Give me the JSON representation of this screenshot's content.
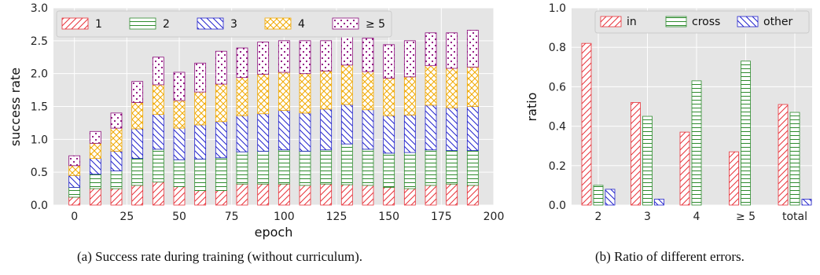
{
  "colors": {
    "bg": "#e5e5e5",
    "grid": "#ffffff",
    "series1": "#e8323a",
    "series2": "#2e8b2e",
    "series3": "#2222cc",
    "series4": "#f0a800",
    "series5": "#8b0b7a"
  },
  "captions": {
    "a": "(a) Success rate during training (without curriculum).",
    "b": "(b) Ratio of different errors."
  },
  "chart_data": [
    {
      "type": "bar",
      "stacked": true,
      "xlabel": "epoch",
      "ylabel": "success rate",
      "xlim": [
        -10,
        200
      ],
      "ylim": [
        0,
        3.0
      ],
      "xticks": [
        "0",
        "25",
        "50",
        "75",
        "100",
        "125",
        "150",
        "175",
        "200"
      ],
      "yticks": [
        "0.0",
        "0.5",
        "1.0",
        "1.5",
        "2.0",
        "2.5",
        "3.0"
      ],
      "grid": true,
      "legend_position": "top",
      "x": [
        0,
        10,
        20,
        30,
        40,
        50,
        60,
        70,
        80,
        90,
        100,
        110,
        120,
        130,
        140,
        150,
        160,
        170,
        180,
        190
      ],
      "series": [
        {
          "name": "1",
          "color": "series1",
          "hatch": "diag-fwd",
          "values": [
            0.12,
            0.25,
            0.25,
            0.3,
            0.35,
            0.28,
            0.22,
            0.22,
            0.32,
            0.32,
            0.32,
            0.3,
            0.32,
            0.31,
            0.3,
            0.27,
            0.25,
            0.3,
            0.32,
            0.3
          ]
        },
        {
          "name": "2",
          "color": "series2",
          "hatch": "horizontal",
          "values": [
            0.15,
            0.22,
            0.27,
            0.41,
            0.5,
            0.41,
            0.48,
            0.5,
            0.49,
            0.5,
            0.52,
            0.52,
            0.52,
            0.62,
            0.55,
            0.52,
            0.55,
            0.54,
            0.51,
            0.53
          ]
        },
        {
          "name": "3",
          "color": "series3",
          "hatch": "diag-back",
          "values": [
            0.18,
            0.24,
            0.3,
            0.45,
            0.53,
            0.48,
            0.52,
            0.55,
            0.55,
            0.57,
            0.6,
            0.58,
            0.62,
            0.6,
            0.6,
            0.57,
            0.57,
            0.68,
            0.65,
            0.67
          ]
        },
        {
          "name": "4",
          "color": "series4",
          "hatch": "cross",
          "values": [
            0.15,
            0.23,
            0.35,
            0.4,
            0.45,
            0.42,
            0.5,
            0.57,
            0.58,
            0.6,
            0.58,
            0.6,
            0.58,
            0.6,
            0.58,
            0.57,
            0.58,
            0.6,
            0.6,
            0.6
          ]
        },
        {
          "name": "≥ 5",
          "color": "series5",
          "hatch": "dots",
          "values": [
            0.15,
            0.18,
            0.23,
            0.32,
            0.42,
            0.43,
            0.44,
            0.5,
            0.45,
            0.49,
            0.48,
            0.5,
            0.46,
            0.45,
            0.51,
            0.51,
            0.55,
            0.5,
            0.54,
            0.56
          ]
        }
      ]
    },
    {
      "type": "bar",
      "stacked": false,
      "xlabel": "",
      "ylabel": "ratio",
      "ylim": [
        0,
        1.0
      ],
      "yticks": [
        "0.0",
        "0.2",
        "0.4",
        "0.6",
        "0.8",
        "1.0"
      ],
      "grid": true,
      "legend_position": "top",
      "categories": [
        "2",
        "3",
        "4",
        "≥ 5",
        "total"
      ],
      "series": [
        {
          "name": "in",
          "color": "series1",
          "hatch": "diag-fwd",
          "values": [
            0.82,
            0.52,
            0.37,
            0.27,
            0.51
          ]
        },
        {
          "name": "cross",
          "color": "series2",
          "hatch": "horizontal",
          "values": [
            0.1,
            0.45,
            0.63,
            0.73,
            0.47
          ]
        },
        {
          "name": "other",
          "color": "series3",
          "hatch": "diag-back",
          "values": [
            0.08,
            0.03,
            0.0,
            0.0,
            0.03
          ]
        }
      ]
    }
  ]
}
